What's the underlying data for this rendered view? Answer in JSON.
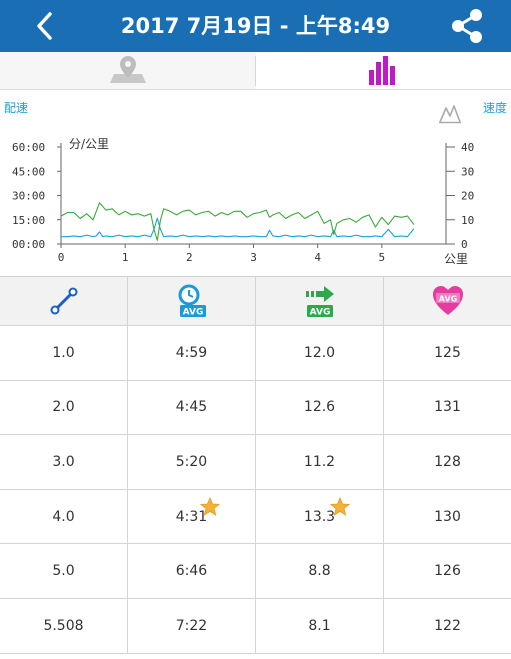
{
  "header": {
    "title": "2017 7月19日 - 上午8:49",
    "back_icon": "chevron-left-icon",
    "share_icon": "share-icon"
  },
  "tabs": [
    {
      "name": "map",
      "icon": "map-pin-icon",
      "active": false
    },
    {
      "name": "charts",
      "icon": "bar-chart-icon",
      "active": true
    }
  ],
  "chart": {
    "left_label": "配速",
    "right_label": "速度",
    "left_unit": "分/公里",
    "x_unit": "公里",
    "elevation_icon": "elevation-icon"
  },
  "chart_data": {
    "type": "line",
    "xlabel": "公里",
    "ylabel": "分/公里",
    "ylabel_right": "",
    "xlim": [
      0,
      6
    ],
    "ylim_left": [
      0,
      60
    ],
    "ylim_right": [
      0,
      40
    ],
    "x_ticks": [
      "0",
      "1",
      "2",
      "3",
      "4",
      "5"
    ],
    "y_ticks_left": [
      "00:00",
      "15:00",
      "30:00",
      "45:00",
      "60:00"
    ],
    "y_ticks_right": [
      "0",
      "10",
      "20",
      "30",
      "40"
    ],
    "series": [
      {
        "axis": "left",
        "color": "#1aa0d8",
        "x": [
          0,
          0.1,
          0.2,
          0.3,
          0.4,
          0.5,
          0.55,
          0.6,
          0.65,
          0.7,
          0.8,
          0.9,
          1.0,
          1.1,
          1.2,
          1.3,
          1.4,
          1.45,
          1.5,
          1.55,
          1.6,
          1.7,
          1.8,
          1.9,
          2.0,
          2.1,
          2.2,
          2.3,
          2.4,
          2.5,
          2.6,
          2.7,
          2.8,
          2.9,
          3.0,
          3.1,
          3.2,
          3.25,
          3.3,
          3.4,
          3.5,
          3.6,
          3.7,
          3.8,
          3.9,
          4.0,
          4.1,
          4.2,
          4.25,
          4.3,
          4.4,
          4.5,
          4.6,
          4.7,
          4.8,
          4.9,
          5.0,
          5.1,
          5.2,
          5.3,
          5.4,
          5.5
        ],
        "values": [
          4.5,
          4.5,
          5.0,
          4.5,
          5.5,
          4.5,
          5.0,
          7.5,
          4.5,
          5.0,
          4.5,
          5.5,
          4.5,
          5.0,
          4.5,
          5.5,
          4.5,
          9.0,
          16.0,
          9.0,
          4.5,
          5.0,
          4.5,
          5.5,
          4.5,
          5.0,
          4.5,
          5.0,
          4.5,
          5.0,
          4.5,
          5.0,
          4.5,
          4.5,
          5.0,
          4.5,
          4.5,
          8.5,
          5.0,
          4.5,
          5.5,
          4.5,
          5.0,
          4.5,
          5.5,
          4.5,
          5.0,
          4.5,
          8.5,
          4.5,
          5.0,
          4.5,
          5.5,
          4.5,
          4.5,
          5.0,
          4.5,
          9.0,
          4.5,
          5.0,
          4.5,
          9.5
        ]
      },
      {
        "axis": "right",
        "color": "#3aaa3a",
        "x": [
          0,
          0.1,
          0.2,
          0.3,
          0.4,
          0.5,
          0.55,
          0.6,
          0.65,
          0.7,
          0.8,
          0.9,
          1.0,
          1.1,
          1.2,
          1.3,
          1.4,
          1.45,
          1.5,
          1.55,
          1.6,
          1.7,
          1.8,
          1.9,
          2.0,
          2.1,
          2.2,
          2.3,
          2.4,
          2.5,
          2.6,
          2.7,
          2.8,
          2.9,
          3.0,
          3.1,
          3.2,
          3.25,
          3.3,
          3.4,
          3.5,
          3.6,
          3.7,
          3.8,
          3.9,
          4.0,
          4.1,
          4.2,
          4.25,
          4.3,
          4.4,
          4.5,
          4.6,
          4.7,
          4.8,
          4.9,
          5.0,
          5.1,
          5.2,
          5.3,
          5.4,
          5.5
        ],
        "values": [
          11.5,
          13,
          13,
          10.5,
          12.5,
          10,
          13.5,
          17,
          15.5,
          14,
          14.5,
          12,
          13.5,
          12,
          12.5,
          11.5,
          12.5,
          6,
          1.5,
          10,
          14.5,
          13.5,
          12,
          13.5,
          14,
          12,
          13,
          13.5,
          11.5,
          13,
          12,
          13.5,
          13.5,
          11,
          12.5,
          13,
          14,
          11,
          12,
          13,
          10.5,
          12,
          13,
          10.5,
          12,
          13.5,
          8.5,
          10,
          4,
          8.5,
          10,
          10.5,
          9,
          11,
          12,
          7,
          11,
          8,
          11.5,
          11,
          11.5,
          8
        ]
      }
    ]
  },
  "table": {
    "header_icons": [
      "distance-icon",
      "avg-pace-icon",
      "avg-speed-icon",
      "avg-heart-rate-icon"
    ],
    "avg_label": "AVG",
    "rows": [
      {
        "distance": "1.0",
        "pace": "4:59",
        "speed": "12.0",
        "hr": "125",
        "best_pace": false,
        "best_speed": false
      },
      {
        "distance": "2.0",
        "pace": "4:45",
        "speed": "12.6",
        "hr": "131",
        "best_pace": false,
        "best_speed": false
      },
      {
        "distance": "3.0",
        "pace": "5:20",
        "speed": "11.2",
        "hr": "128",
        "best_pace": false,
        "best_speed": false
      },
      {
        "distance": "4.0",
        "pace": "4:31",
        "speed": "13.3",
        "hr": "130",
        "best_pace": true,
        "best_speed": true
      },
      {
        "distance": "5.0",
        "pace": "6:46",
        "speed": "8.8",
        "hr": "126",
        "best_pace": false,
        "best_speed": false
      },
      {
        "distance": "5.508",
        "pace": "7:22",
        "speed": "8.1",
        "hr": "122",
        "best_pace": false,
        "best_speed": false
      }
    ],
    "star_icon": "star-icon"
  }
}
